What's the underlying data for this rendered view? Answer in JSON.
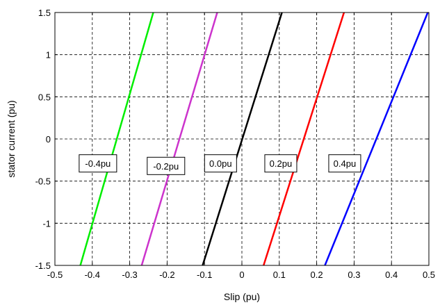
{
  "chart_data": {
    "type": "line",
    "xlabel": "Slip (pu)",
    "ylabel": "stator current (pu)",
    "xlim": [
      -0.5,
      0.5
    ],
    "ylim": [
      -1.5,
      1.5
    ],
    "grid": true,
    "x_ticks": [
      -0.5,
      -0.4,
      -0.3,
      -0.2,
      -0.1,
      0,
      0.1,
      0.2,
      0.3,
      0.4,
      0.5
    ],
    "x_tick_labels": [
      "-0.5",
      "-0.4",
      "-0.3",
      "-0.2",
      "-0.1",
      "0",
      "0.1",
      "0.2",
      "0.3",
      "0.4",
      "0.5"
    ],
    "y_ticks": [
      -1.5,
      -1,
      -0.5,
      0,
      0.5,
      1,
      1.5
    ],
    "y_tick_labels": [
      "-1.5",
      "-1",
      "-0.5",
      "0",
      "0.5",
      "1",
      "1.5"
    ],
    "series": [
      {
        "color": "#00ee00",
        "x": [
          -0.432,
          -0.237
        ],
        "y": [
          -1.5,
          1.5
        ]
      },
      {
        "color": "#cc33cc",
        "x": [
          -0.268,
          -0.066
        ],
        "y": [
          -1.5,
          1.5
        ]
      },
      {
        "color": "#000000",
        "x": [
          -0.105,
          0.107
        ],
        "y": [
          -1.5,
          1.5
        ]
      },
      {
        "color": "#ff0000",
        "x": [
          0.058,
          0.273
        ],
        "y": [
          -1.5,
          1.5
        ]
      },
      {
        "color": "#0000ff",
        "x": [
          0.222,
          0.497
        ],
        "y": [
          -1.5,
          1.5
        ]
      }
    ],
    "annotations": [
      {
        "text": "-0.4pu",
        "x": -0.385,
        "y": -0.29
      },
      {
        "text": "-0.2pu",
        "x": -0.203,
        "y": -0.32
      },
      {
        "text": "0.0pu",
        "x": -0.057,
        "y": -0.29
      },
      {
        "text": "0.2pu",
        "x": 0.104,
        "y": -0.29
      },
      {
        "text": "0.4pu",
        "x": 0.275,
        "y": -0.29
      }
    ]
  }
}
